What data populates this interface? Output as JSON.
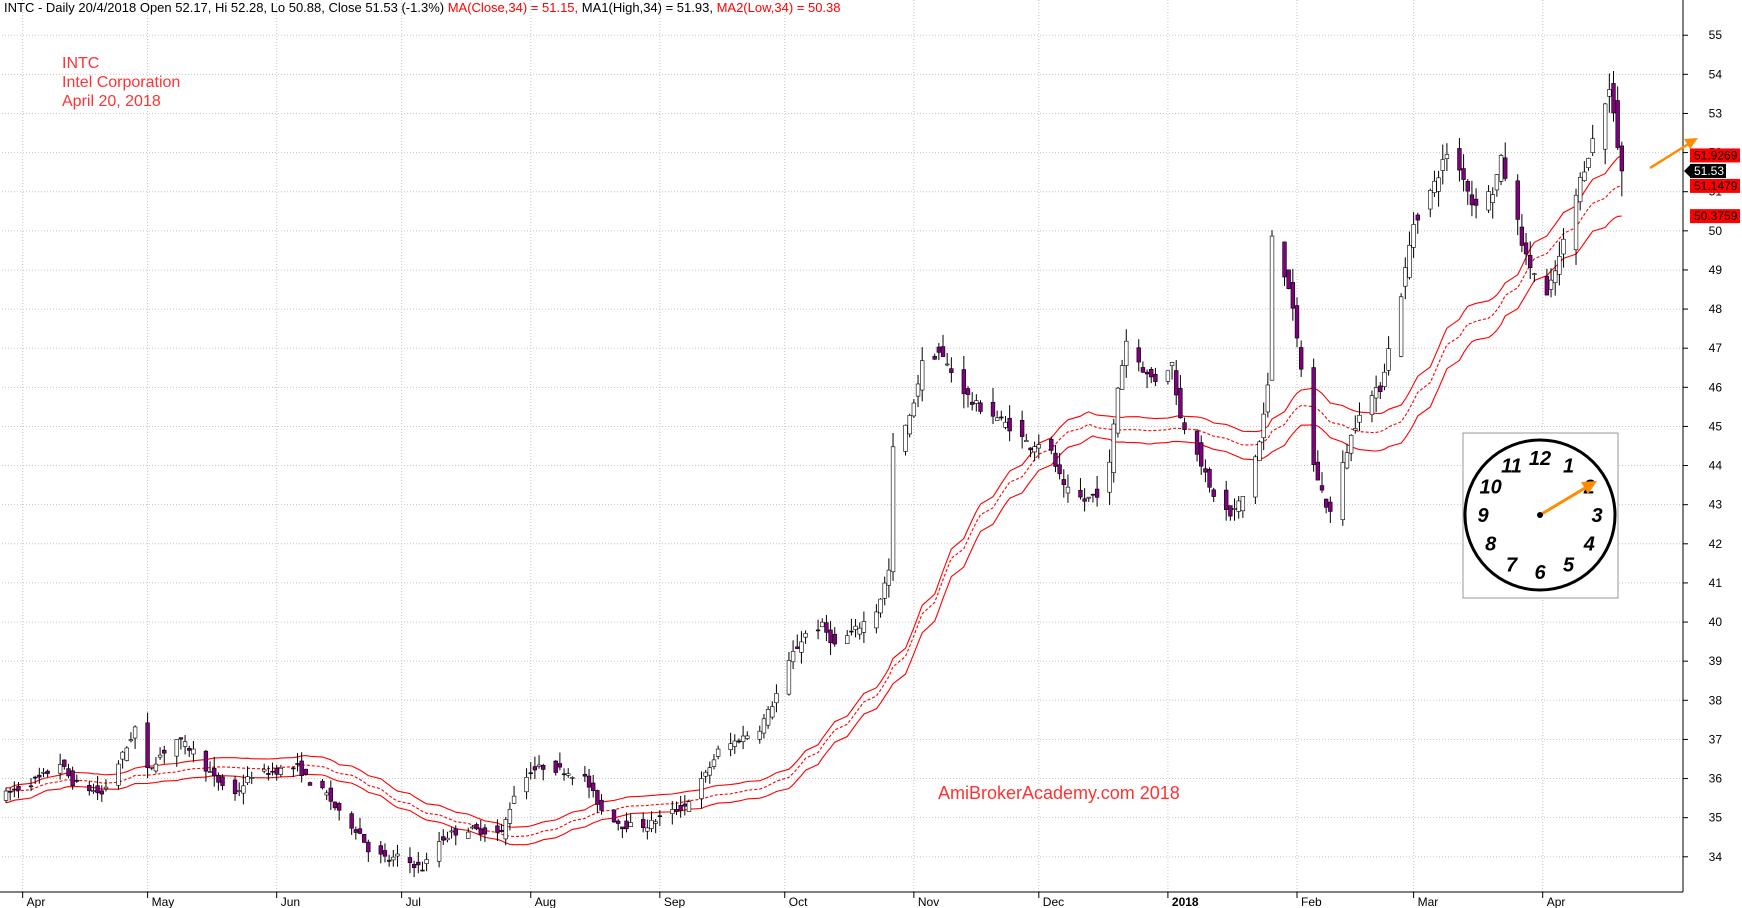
{
  "header": {
    "prefix": "INTC - Daily 20/4/2018 Open 52.17, Hi 52.28, Lo 50.88, Close 51.53 (-1.3%)",
    "ma_close": "MA(Close,34) = 51.15,",
    "ma_high": "MA1(High,34) = 51.93,",
    "ma_low": "MA2(Low,34) = 50.38"
  },
  "annotation": {
    "ticker": "INTC",
    "company": "Intel Corporation",
    "date": "April 20, 2018"
  },
  "watermark": "AmiBrokerAcademy.com  2018",
  "price_labels": {
    "ma_high": "51.9269",
    "close": "51.53",
    "ma_close": "51.1479",
    "ma_low": "50.3759"
  },
  "clock_numbers": [
    "12",
    "1",
    "2",
    "3",
    "4",
    "5",
    "6",
    "7",
    "8",
    "9",
    "10",
    "11"
  ],
  "colors": {
    "bull_candle": "#ffffff",
    "bear_candle": "#800080",
    "moving_average": "#ff0000",
    "annotation_text": "#ff3333",
    "arrow": "#ff8c00",
    "grid": "#c8c8c8"
  },
  "chart_data": {
    "type": "candlestick",
    "y_axis_ticks": [
      34,
      35,
      36,
      37,
      38,
      39,
      40,
      41,
      42,
      43,
      44,
      45,
      46,
      47,
      48,
      49,
      50,
      51,
      52,
      53,
      54,
      55
    ],
    "ylim": [
      33.1,
      55.9
    ],
    "y_axis_side": "right",
    "x_axis_labels": [
      "Apr",
      "May",
      "Jun",
      "Jul",
      "Aug",
      "Sep",
      "Oct",
      "Nov",
      "Dec",
      "2018",
      "Feb",
      "Mar",
      "Apr"
    ],
    "x_axis_label_bold": "2018",
    "date_range": [
      "2017-03-28",
      "2018-04-20"
    ],
    "month_boundaries": [
      "2017-04-01",
      "2017-05-01",
      "2017-06-01",
      "2017-07-01",
      "2017-08-01",
      "2017-09-01",
      "2017-10-01",
      "2017-11-01",
      "2017-12-01",
      "2018-01-01",
      "2018-02-01",
      "2018-03-01",
      "2018-04-01"
    ],
    "grid": true,
    "price_anchors": [
      [
        "2017-03-28",
        35.6
      ],
      [
        "2017-04-05",
        36.0
      ],
      [
        "2017-04-10",
        36.4
      ],
      [
        "2017-04-13",
        35.9
      ],
      [
        "2017-04-20",
        35.6
      ],
      [
        "2017-04-26",
        36.8
      ],
      [
        "2017-04-28",
        37.3
      ],
      [
        "2017-05-01",
        36.2
      ],
      [
        "2017-05-04",
        36.6
      ],
      [
        "2017-05-08",
        37.0
      ],
      [
        "2017-05-12",
        36.7
      ],
      [
        "2017-05-17",
        36.0
      ],
      [
        "2017-05-22",
        35.6
      ],
      [
        "2017-05-26",
        36.1
      ],
      [
        "2017-06-01",
        36.2
      ],
      [
        "2017-06-06",
        36.3
      ],
      [
        "2017-06-09",
        35.9
      ],
      [
        "2017-06-13",
        35.6
      ],
      [
        "2017-06-16",
        35.1
      ],
      [
        "2017-06-21",
        34.6
      ],
      [
        "2017-06-23",
        34.2
      ],
      [
        "2017-06-28",
        33.9
      ],
      [
        "2017-06-30",
        34.0
      ],
      [
        "2017-07-06",
        33.7
      ],
      [
        "2017-07-10",
        34.4
      ],
      [
        "2017-07-13",
        34.6
      ],
      [
        "2017-07-17",
        34.7
      ],
      [
        "2017-07-25",
        34.6
      ],
      [
        "2017-07-28",
        35.6
      ],
      [
        "2017-08-01",
        36.2
      ],
      [
        "2017-08-04",
        36.3
      ],
      [
        "2017-08-09",
        36.2
      ],
      [
        "2017-08-14",
        36.0
      ],
      [
        "2017-08-18",
        35.2
      ],
      [
        "2017-08-23",
        34.8
      ],
      [
        "2017-08-29",
        34.8
      ],
      [
        "2017-09-01",
        35.0
      ],
      [
        "2017-09-07",
        35.3
      ],
      [
        "2017-09-12",
        36.1
      ],
      [
        "2017-09-15",
        36.7
      ],
      [
        "2017-09-20",
        37.0
      ],
      [
        "2017-09-25",
        37.3
      ],
      [
        "2017-09-28",
        37.9
      ],
      [
        "2017-10-03",
        39.2
      ],
      [
        "2017-10-06",
        39.7
      ],
      [
        "2017-10-10",
        39.9
      ],
      [
        "2017-10-13",
        39.4
      ],
      [
        "2017-10-18",
        39.8
      ],
      [
        "2017-10-23",
        40.3
      ],
      [
        "2017-10-26",
        41.3
      ],
      [
        "2017-10-27",
        44.4
      ],
      [
        "2017-10-31",
        45.2
      ],
      [
        "2017-11-03",
        46.6
      ],
      [
        "2017-11-07",
        46.9
      ],
      [
        "2017-11-10",
        46.4
      ],
      [
        "2017-11-15",
        45.6
      ],
      [
        "2017-11-20",
        45.3
      ],
      [
        "2017-11-24",
        45.0
      ],
      [
        "2017-11-29",
        44.5
      ],
      [
        "2017-12-01",
        44.6
      ],
      [
        "2017-12-04",
        44.3
      ],
      [
        "2017-12-07",
        43.4
      ],
      [
        "2017-12-12",
        43.1
      ],
      [
        "2017-12-15",
        43.3
      ],
      [
        "2017-12-18",
        44.0
      ],
      [
        "2017-12-20",
        46.0
      ],
      [
        "2017-12-22",
        47.2
      ],
      [
        "2017-12-27",
        46.3
      ],
      [
        "2017-12-29",
        46.2
      ],
      [
        "2018-01-02",
        46.6
      ],
      [
        "2018-01-04",
        45.2
      ],
      [
        "2018-01-08",
        44.4
      ],
      [
        "2018-01-11",
        43.4
      ],
      [
        "2018-01-16",
        42.7
      ],
      [
        "2018-01-19",
        43.2
      ],
      [
        "2018-01-23",
        44.6
      ],
      [
        "2018-01-25",
        46.0
      ],
      [
        "2018-01-26",
        49.9
      ],
      [
        "2018-01-30",
        48.6
      ],
      [
        "2018-02-02",
        46.5
      ],
      [
        "2018-02-05",
        44.0
      ],
      [
        "2018-02-08",
        43.0
      ],
      [
        "2018-02-09",
        42.8
      ],
      [
        "2018-02-13",
        44.4
      ],
      [
        "2018-02-16",
        45.4
      ],
      [
        "2018-02-21",
        46.0
      ],
      [
        "2018-02-26",
        48.4
      ],
      [
        "2018-03-01",
        50.2
      ],
      [
        "2018-03-06",
        51.2
      ],
      [
        "2018-03-09",
        52.0
      ],
      [
        "2018-03-13",
        51.4
      ],
      [
        "2018-03-15",
        50.7
      ],
      [
        "2018-03-20",
        51.0
      ],
      [
        "2018-03-22",
        51.8
      ],
      [
        "2018-03-26",
        50.2
      ],
      [
        "2018-03-28",
        49.3
      ],
      [
        "2018-04-02",
        48.3
      ],
      [
        "2018-04-05",
        49.3
      ],
      [
        "2018-04-10",
        51.3
      ],
      [
        "2018-04-13",
        52.3
      ],
      [
        "2018-04-17",
        53.6
      ],
      [
        "2018-04-18",
        53.1
      ],
      [
        "2018-04-19",
        52.2
      ],
      [
        "2018-04-20",
        51.53
      ]
    ],
    "last_bar": {
      "date": "2018-04-20",
      "open": 52.17,
      "high": 52.28,
      "low": 50.88,
      "close": 51.53
    },
    "series": [
      {
        "name": "MA(Close,34)",
        "style": "dashed",
        "last_value": 51.15
      },
      {
        "name": "MA1(High,34)",
        "style": "solid",
        "last_value": 51.93
      },
      {
        "name": "MA2(Low,34)",
        "style": "solid",
        "last_value": 50.38
      }
    ],
    "ma_period": 34
  }
}
